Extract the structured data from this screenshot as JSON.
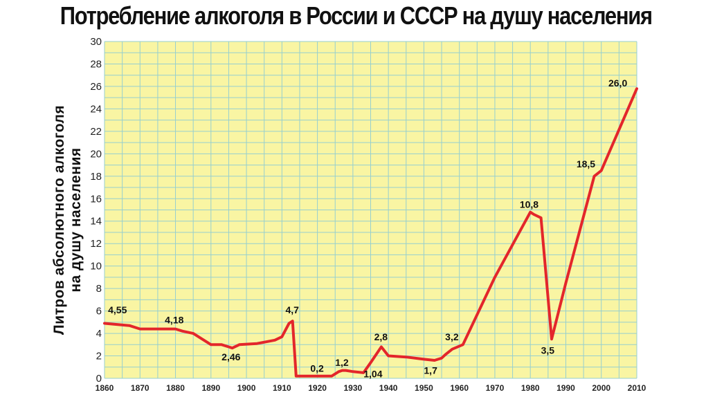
{
  "chart_data": {
    "type": "line",
    "title": "Потребление алкоголя в России и СССР на душу населения",
    "ylabel": [
      "Литров абсолютного алкоголя",
      "на душу населения"
    ],
    "xlabel": "",
    "xlim": [
      1860,
      2010
    ],
    "ylim": [
      0,
      30
    ],
    "x_ticks": [
      1860,
      1870,
      1880,
      1890,
      1900,
      1910,
      1920,
      1930,
      1940,
      1950,
      1960,
      1970,
      1980,
      1990,
      2000,
      2010
    ],
    "y_ticks": [
      0,
      2,
      4,
      6,
      8,
      10,
      12,
      14,
      16,
      18,
      20,
      22,
      24,
      26,
      28,
      30
    ],
    "grid": true,
    "colors": {
      "background": "#f9f5a3",
      "grid": "#96cfcf",
      "line": "#e3262b"
    },
    "series": [
      {
        "x": [
          1860,
          1867,
          1870,
          1880,
          1882,
          1885,
          1887,
          1889,
          1890,
          1893,
          1895,
          1896,
          1898,
          1903,
          1908,
          1910,
          1912,
          1913,
          1914,
          1924,
          1926,
          1927,
          1928,
          1930,
          1933,
          1935,
          1938,
          1940,
          1945,
          1950,
          1953,
          1955,
          1956,
          1958,
          1961,
          1970,
          1980,
          1981,
          1983,
          1986,
          1990,
          1998,
          2000,
          2010
        ],
        "y": [
          4.9,
          4.7,
          4.4,
          4.4,
          4.2,
          4.0,
          3.6,
          3.2,
          3.0,
          3.0,
          2.8,
          2.7,
          3.0,
          3.1,
          3.4,
          3.7,
          4.9,
          5.1,
          0.2,
          0.2,
          0.6,
          0.7,
          0.7,
          0.6,
          0.5,
          1.4,
          2.8,
          2.0,
          1.9,
          1.7,
          1.6,
          1.8,
          2.1,
          2.6,
          3.0,
          9.0,
          14.8,
          14.6,
          14.3,
          3.5,
          8.5,
          18.0,
          18.5,
          25.8
        ]
      }
    ],
    "annotations": [
      {
        "text": "4,55",
        "x": 1861,
        "y": 5.8
      },
      {
        "text": "4,18",
        "x": 1877,
        "y": 4.9
      },
      {
        "text": "2,46",
        "x": 1893,
        "y": 1.6
      },
      {
        "text": "4,7",
        "x": 1911,
        "y": 5.8
      },
      {
        "text": "0,2",
        "x": 1918,
        "y": 0.6
      },
      {
        "text": "1,2",
        "x": 1925,
        "y": 1.1
      },
      {
        "text": "1,04",
        "x": 1933,
        "y": 0.1
      },
      {
        "text": "2,8",
        "x": 1936,
        "y": 3.4
      },
      {
        "text": "1,7",
        "x": 1950,
        "y": 0.4
      },
      {
        "text": "3,2",
        "x": 1956,
        "y": 3.4
      },
      {
        "text": "10,8",
        "x": 1977,
        "y": 15.2
      },
      {
        "text": "3,5",
        "x": 1983,
        "y": 2.2
      },
      {
        "text": "18,5",
        "x": 1993,
        "y": 18.8
      },
      {
        "text": "26,0",
        "x": 2002,
        "y": 26.0
      }
    ]
  }
}
